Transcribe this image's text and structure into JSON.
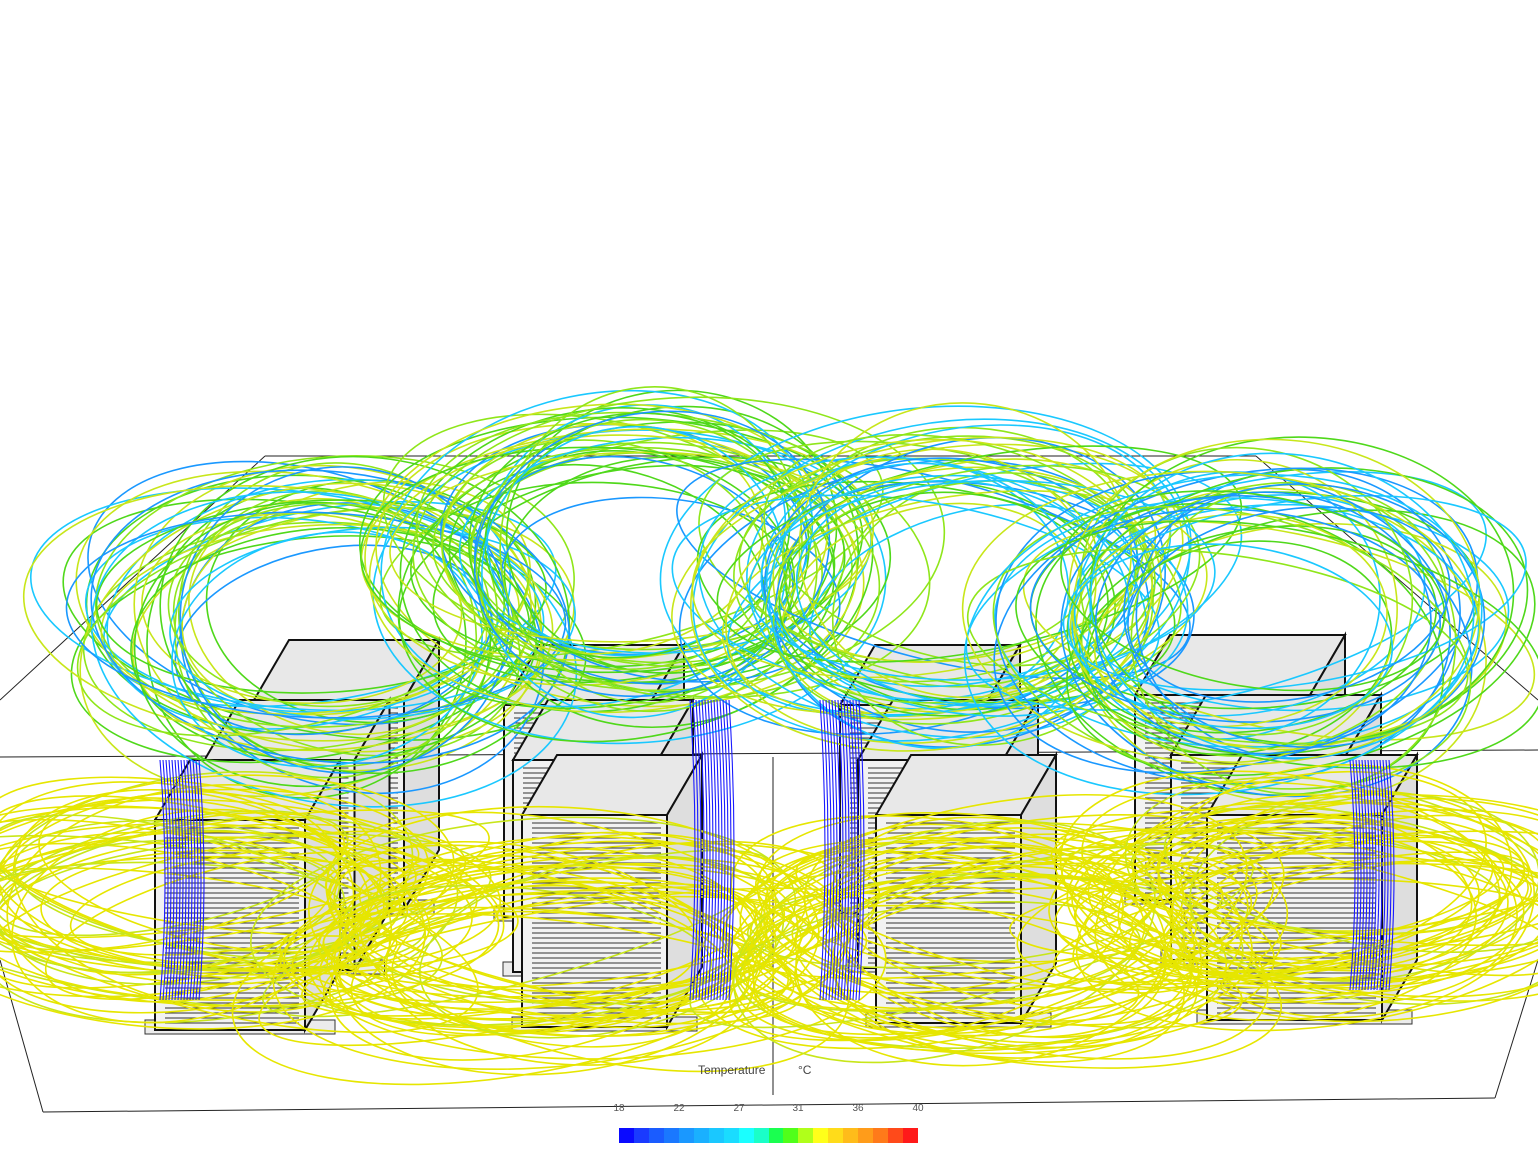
{
  "legend": {
    "title": "Temperature",
    "unit": "°C",
    "ticks": [
      "18",
      "22",
      "27",
      "31",
      "36",
      "40"
    ],
    "range": [
      18,
      40
    ],
    "colors": [
      "#0a0aff",
      "#1a3aff",
      "#1a5cff",
      "#1a78ff",
      "#1a98ff",
      "#1ab0ff",
      "#1ac8ff",
      "#1adcff",
      "#1affff",
      "#1affc8",
      "#1aff50",
      "#50ff1a",
      "#b0ff1a",
      "#ffff1a",
      "#ffdc1a",
      "#ffbc1a",
      "#ff9c1a",
      "#ff7a1a",
      "#ff4a1a",
      "#ff1a1a"
    ]
  },
  "scene": {
    "object": "server-racks-streamlines",
    "streamline_colors": [
      "#e6e600",
      "#c8e61a",
      "#8fe61a",
      "#4fd81a",
      "#1ac8ff",
      "#1a98ff"
    ]
  }
}
